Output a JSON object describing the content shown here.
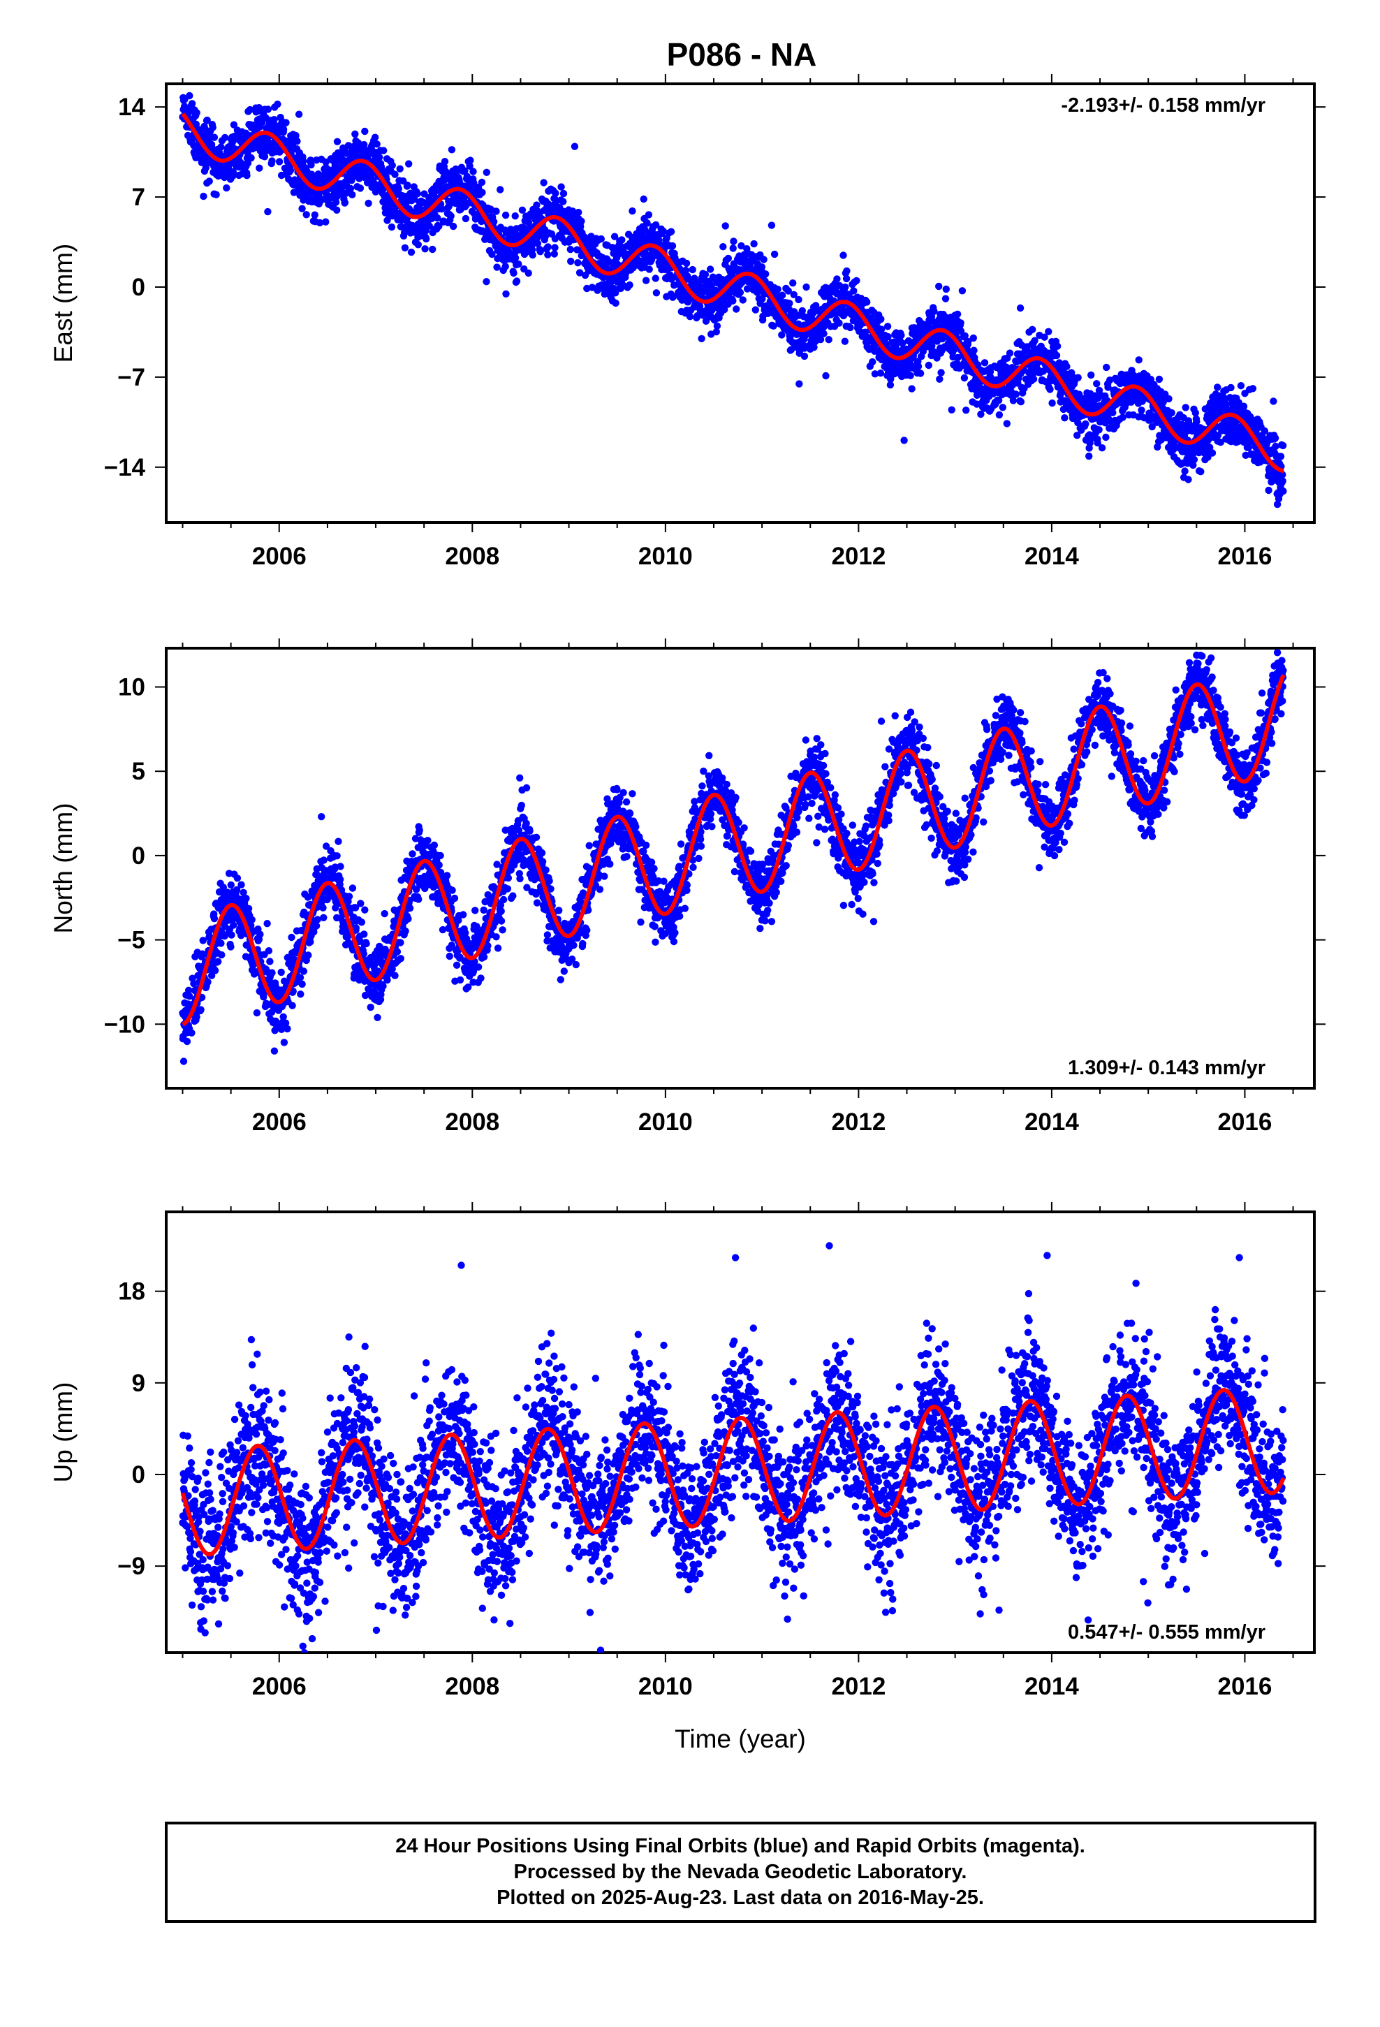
{
  "title": "P086 - NA",
  "colors": {
    "final_orbits": "#0000ff",
    "model": "#ff0000",
    "frame": "#000000"
  },
  "chart_data": [
    {
      "type": "scatter",
      "component": "east",
      "ylabel": "East (mm)",
      "xlabel": "",
      "xlim": [
        2004.83,
        2016.72
      ],
      "ylim": [
        -18.3,
        15.8
      ],
      "xticks": [
        2006,
        2008,
        2010,
        2012,
        2014,
        2016
      ],
      "yticks": [
        14,
        7,
        0,
        -7,
        -14
      ],
      "ytick_labels": [
        "14",
        "7",
        "0",
        "−7",
        "−14"
      ],
      "rate_label": "-2.193+/- 0.158 mm/yr",
      "rate_position": "top-right",
      "series": [
        {
          "kind": "points",
          "color": "#0000ff",
          "x_start": 2005.0,
          "x_end": 2016.4,
          "trend_mm_per_yr": -2.193,
          "trend_at_2005": 12.3,
          "annual_amplitude": 1.6,
          "annual_peak_phase": 0.88,
          "scatter_sd": 1.1
        },
        {
          "kind": "model",
          "color": "#ff0000",
          "x_start": 2005.0,
          "x_end": 2016.4,
          "trend_mm_per_yr": -2.193,
          "trend_at_2005": 12.3,
          "annual_amplitude": 1.6,
          "annual_peak_phase": 0.88
        }
      ]
    },
    {
      "type": "scatter",
      "component": "north",
      "ylabel": "North (mm)",
      "xlabel": "",
      "xlim": [
        2004.83,
        2016.72
      ],
      "ylim": [
        -13.8,
        12.3
      ],
      "xticks": [
        2006,
        2008,
        2010,
        2012,
        2014,
        2016
      ],
      "yticks": [
        10,
        5,
        0,
        -5,
        -10
      ],
      "ytick_labels": [
        "10",
        "5",
        "0",
        "−5",
        "−10"
      ],
      "rate_label": "1.309+/- 0.143 mm/yr",
      "rate_position": "bottom-right",
      "series": [
        {
          "kind": "points",
          "color": "#0000ff",
          "x_start": 2005.0,
          "x_end": 2016.4,
          "trend_mm_per_yr": 1.309,
          "trend_at_2005": -6.8,
          "annual_amplitude": 3.2,
          "annual_peak_phase": 0.5,
          "scatter_sd": 1.0
        },
        {
          "kind": "model",
          "color": "#ff0000",
          "x_start": 2005.0,
          "x_end": 2016.4,
          "trend_mm_per_yr": 1.309,
          "trend_at_2005": -6.8,
          "annual_amplitude": 3.2,
          "annual_peak_phase": 0.5
        }
      ]
    },
    {
      "type": "scatter",
      "component": "up",
      "ylabel": "Up (mm)",
      "xlabel": "Time (year)",
      "xlim": [
        2004.83,
        2016.72
      ],
      "ylim": [
        -17.5,
        25.8
      ],
      "xticks": [
        2006,
        2008,
        2010,
        2012,
        2014,
        2016
      ],
      "yticks": [
        18,
        9,
        0,
        -9
      ],
      "ytick_labels": [
        "18",
        "9",
        "0",
        "−9"
      ],
      "rate_label": "0.547+/- 0.555 mm/yr",
      "rate_position": "bottom-right",
      "series": [
        {
          "kind": "points",
          "color": "#0000ff",
          "x_start": 2005.0,
          "x_end": 2016.4,
          "trend_mm_per_yr": 0.547,
          "trend_at_2005": -2.8,
          "annual_amplitude": 5.2,
          "annual_peak_phase": 0.78,
          "scatter_sd": 3.6
        },
        {
          "kind": "model",
          "color": "#ff0000",
          "x_start": 2005.0,
          "x_end": 2016.4,
          "trend_mm_per_yr": 0.547,
          "trend_at_2005": -2.8,
          "annual_amplitude": 5.2,
          "annual_peak_phase": 0.78
        }
      ]
    }
  ],
  "footer": {
    "lines": [
      "24 Hour Positions Using Final Orbits (blue) and Rapid Orbits (magenta).",
      "Processed by the Nevada Geodetic Laboratory.",
      "Plotted on 2025-Aug-23. Last data on 2016-May-25."
    ]
  }
}
